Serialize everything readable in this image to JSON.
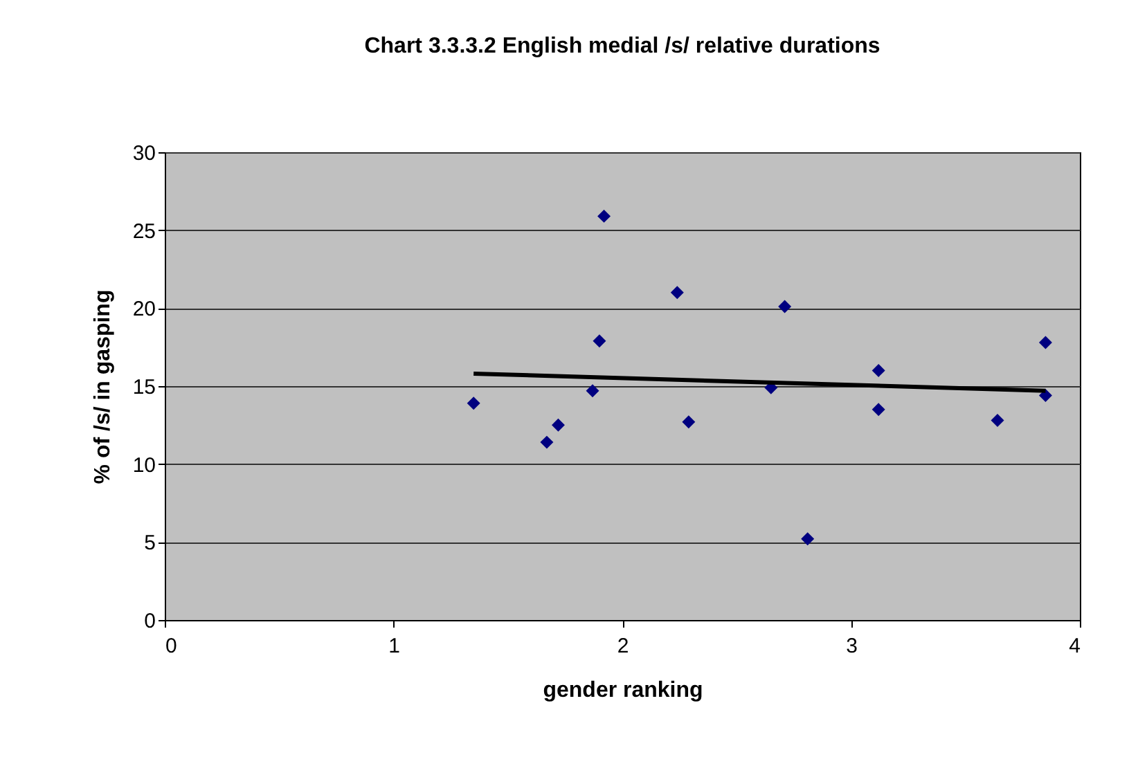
{
  "chart_data": {
    "type": "scatter",
    "title": "Chart 3.3.3.2 English medial /s/ relative durations",
    "xlabel": "gender ranking",
    "ylabel": "% of /s/ in gasping",
    "series": [
      {
        "color": "#000080",
        "marker": "diamond",
        "x": [
          1.35,
          1.67,
          1.72,
          1.87,
          1.9,
          1.92,
          2.24,
          2.29,
          2.65,
          2.71,
          2.81,
          3.12,
          3.12,
          3.64,
          3.85,
          3.85
        ],
        "values": [
          13.9,
          11.4,
          12.5,
          14.7,
          17.9,
          25.9,
          21.0,
          12.7,
          14.9,
          20.1,
          5.2,
          16.0,
          13.5,
          12.8,
          17.8,
          14.4
        ]
      },
      {
        "type": "line",
        "marker": "none",
        "color": "#000000",
        "x": [
          1.35,
          3.85
        ],
        "values": [
          15.8,
          14.7
        ]
      }
    ],
    "xlim": [
      0,
      4
    ],
    "xticks": [
      0,
      1,
      2,
      3,
      4
    ],
    "ylim": [
      0,
      30
    ],
    "yticks": [
      0,
      5,
      10,
      15,
      20,
      25,
      30
    ],
    "grid": "y"
  }
}
